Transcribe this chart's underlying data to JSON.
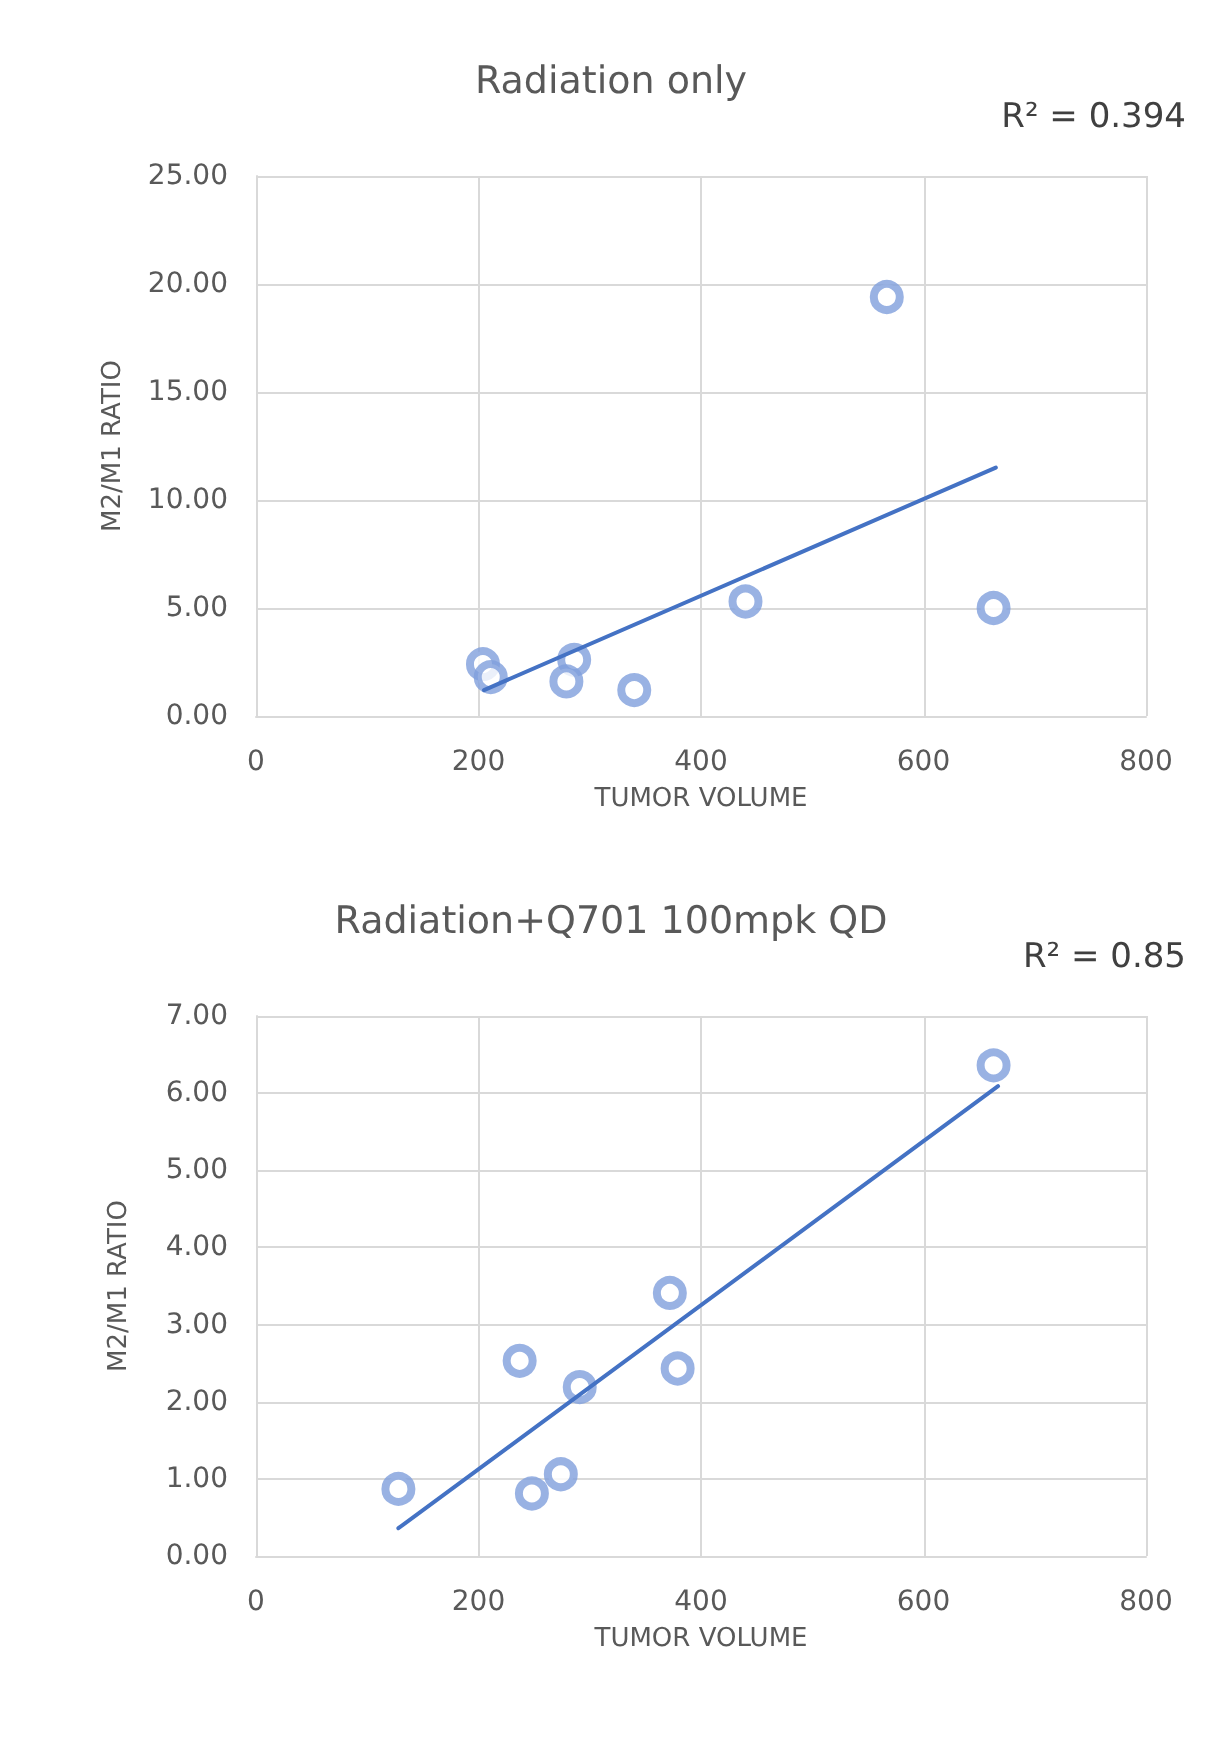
{
  "chart_data": [
    {
      "type": "scatter",
      "title": "Radiation only",
      "xlabel": "TUMOR VOLUME",
      "ylabel": "M2/M1 RATIO",
      "annotations": [
        "R² = 0.394"
      ],
      "xlim": [
        0,
        800
      ],
      "xticks": [
        0,
        200,
        400,
        600,
        800
      ],
      "ylim": [
        0,
        25
      ],
      "yticks": [
        {
          "value": 0,
          "label": "0.00"
        },
        {
          "value": 5,
          "label": "5.00"
        },
        {
          "value": 10,
          "label": "10.00"
        },
        {
          "value": 15,
          "label": "15.00"
        },
        {
          "value": 20,
          "label": "20.00"
        },
        {
          "value": 25,
          "label": "25.00"
        }
      ],
      "grid": true,
      "marker": "circle",
      "series": [
        {
          "color": "#7f9fdc",
          "x": [
            204,
            211,
            286,
            279,
            340,
            440,
            567,
            663
          ],
          "values": [
            2.4,
            1.8,
            2.6,
            1.6,
            1.2,
            5.3,
            19.4,
            5.0
          ]
        },
        {
          "type": "line",
          "color": "#4472c4",
          "marker": "none",
          "x": [
            205,
            665
          ],
          "values": [
            1.2,
            11.5
          ]
        }
      ]
    },
    {
      "type": "scatter",
      "title": "Radiation+Q701 100mpk QD",
      "xlabel": "TUMOR VOLUME",
      "ylabel": "M2/M1 RATIO",
      "annotations": [
        "R² = 0.85"
      ],
      "xlim": [
        0,
        800
      ],
      "xticks": [
        0,
        200,
        400,
        600,
        800
      ],
      "ylim": [
        0,
        7
      ],
      "yticks": [
        {
          "value": 0,
          "label": "0.00"
        },
        {
          "value": 1,
          "label": "1.00"
        },
        {
          "value": 2,
          "label": "2.00"
        },
        {
          "value": 3,
          "label": "3.00"
        },
        {
          "value": 4,
          "label": "4.00"
        },
        {
          "value": 5,
          "label": "5.00"
        },
        {
          "value": 6,
          "label": "6.00"
        },
        {
          "value": 7,
          "label": "7.00"
        }
      ],
      "grid": true,
      "marker": "circle",
      "series": [
        {
          "color": "#7f9fdc",
          "x": [
            128,
            248,
            274,
            237,
            291,
            372,
            379,
            663
          ],
          "values": [
            0.87,
            0.81,
            1.06,
            2.53,
            2.19,
            3.41,
            2.43,
            6.36
          ]
        },
        {
          "type": "line",
          "color": "#4472c4",
          "marker": "none",
          "x": [
            128,
            667
          ],
          "values": [
            0.36,
            6.09
          ]
        }
      ]
    }
  ]
}
